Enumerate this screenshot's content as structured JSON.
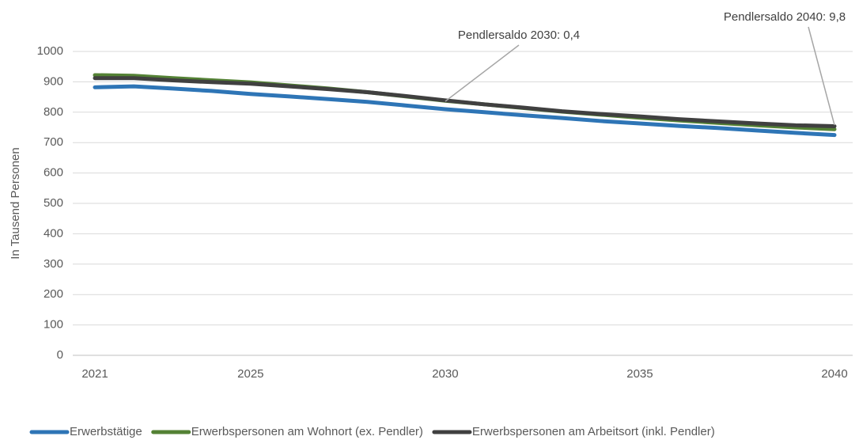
{
  "chart_data": {
    "type": "line",
    "y_label": "In Tausend Personen",
    "x": [
      2021,
      2022,
      2023,
      2024,
      2025,
      2026,
      2027,
      2028,
      2029,
      2030,
      2031,
      2032,
      2033,
      2034,
      2035,
      2036,
      2037,
      2038,
      2039,
      2040
    ],
    "xlim": [
      2021,
      2040
    ],
    "xticks": [
      2021,
      2025,
      2030,
      2035,
      2040
    ],
    "ylim": [
      0,
      1000
    ],
    "yticks": [
      0,
      100,
      200,
      300,
      400,
      500,
      600,
      700,
      800,
      900,
      1000
    ],
    "grid": true,
    "legend": "bottom",
    "series": [
      {
        "name": "Erwerbstätige",
        "color": "#2e75b6",
        "values": [
          882,
          885,
          878,
          870,
          860,
          852,
          843,
          834,
          822,
          810,
          800,
          790,
          781,
          771,
          763,
          755,
          748,
          740,
          732,
          725
        ]
      },
      {
        "name": "Erwerbspersonen am Wohnort (ex. Pendler)",
        "color": "#548235",
        "values": [
          922,
          920,
          912,
          905,
          898,
          888,
          878,
          866,
          852,
          838,
          826,
          814,
          802,
          792,
          782,
          773,
          765,
          757,
          750,
          744
        ]
      },
      {
        "name": "Erwerbspersonen am Arbeitsort (inkl. Pendler)",
        "color": "#404040",
        "values": [
          912,
          912,
          905,
          899,
          894,
          885,
          876,
          866,
          853,
          839,
          826,
          815,
          803,
          794,
          786,
          777,
          770,
          763,
          757,
          754
        ]
      }
    ],
    "annotations": [
      "Pendlersaldo 2030: 0,4",
      "Pendlersaldo 2040: 9,8"
    ]
  }
}
